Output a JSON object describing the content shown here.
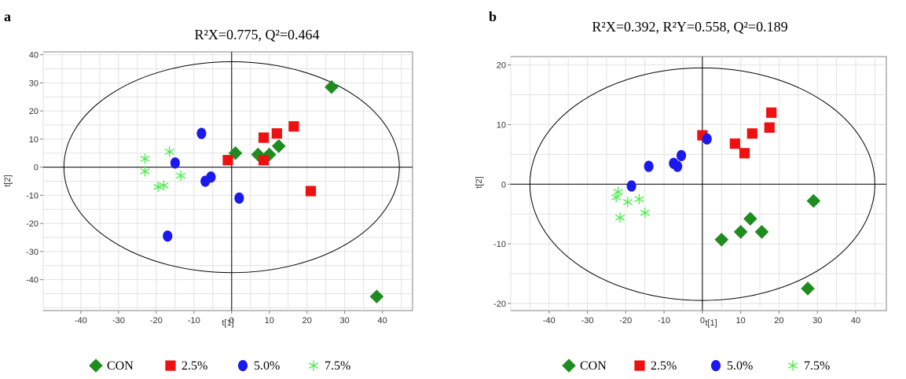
{
  "chart_data": [
    {
      "type": "scatter",
      "panel": "a",
      "title": "R²X=0.775,  Q²=0.464",
      "xlabel": "t[1]",
      "ylabel": "t[2]",
      "xlim": [
        -50,
        48
      ],
      "ylim": [
        -51,
        41
      ],
      "xticks": [
        -40,
        -30,
        -20,
        -10,
        0,
        10,
        20,
        30,
        40
      ],
      "yticks": [
        -40,
        -30,
        -20,
        -10,
        0,
        10,
        20,
        30,
        40
      ],
      "grid": true,
      "ellipse": {
        "cx": 0,
        "cy": 0,
        "rx": 44.5,
        "ry": 37.5
      },
      "series": [
        {
          "name": "CON",
          "marker": "diamond",
          "color": "#1e8c1e",
          "points": [
            [
              1,
              5
            ],
            [
              7,
              4.5
            ],
            [
              10,
              4.5
            ],
            [
              12.5,
              7.5
            ],
            [
              26.5,
              28.5
            ],
            [
              38.5,
              -46
            ]
          ]
        },
        {
          "name": "2.5%",
          "marker": "square",
          "color": "#ee1111",
          "points": [
            [
              -1,
              2.5
            ],
            [
              8.5,
              10.5
            ],
            [
              8.5,
              2.5
            ],
            [
              12,
              12
            ],
            [
              16.5,
              14.5
            ],
            [
              21,
              -8.5
            ]
          ]
        },
        {
          "name": "5.0%",
          "marker": "circle",
          "color": "#1a1aee",
          "points": [
            [
              -8,
              12
            ],
            [
              -15,
              1.5
            ],
            [
              -7,
              -5
            ],
            [
              -5.5,
              -3.5
            ],
            [
              2,
              -11
            ],
            [
              -17,
              -24.5
            ]
          ]
        },
        {
          "name": "7.5%",
          "marker": "asterisk",
          "color": "#44ee44",
          "points": [
            [
              -23,
              3
            ],
            [
              -23,
              -1.5
            ],
            [
              -16.5,
              5.5
            ],
            [
              -19.5,
              -7
            ],
            [
              -18,
              -6.5
            ],
            [
              -13.5,
              -3
            ]
          ]
        }
      ]
    },
    {
      "type": "scatter",
      "panel": "b",
      "title": "R²X=0.392,  R²Y=0.558,  Q²=0.189",
      "xlabel": "t[1]",
      "ylabel": "t[2]",
      "xlim": [
        -50,
        48
      ],
      "ylim": [
        -21.2,
        21.4
      ],
      "xticks": [
        -40,
        -30,
        -20,
        -10,
        0,
        10,
        20,
        30,
        40
      ],
      "yticks": [
        -20,
        -10,
        0,
        10,
        20
      ],
      "grid": true,
      "ellipse": {
        "cx": 0,
        "cy": 0,
        "rx": 45,
        "ry": 19.5
      },
      "series": [
        {
          "name": "CON",
          "marker": "diamond",
          "color": "#1e8c1e",
          "points": [
            [
              5,
              -9.3
            ],
            [
              10,
              -8
            ],
            [
              12.5,
              -5.8
            ],
            [
              15.5,
              -8
            ],
            [
              27.5,
              -17.5
            ],
            [
              29,
              -2.8
            ]
          ]
        },
        {
          "name": "2.5%",
          "marker": "square",
          "color": "#ee1111",
          "points": [
            [
              0,
              8.2
            ],
            [
              8.5,
              6.8
            ],
            [
              11,
              5.2
            ],
            [
              13,
              8.5
            ],
            [
              17.5,
              9.5
            ],
            [
              18,
              12
            ]
          ]
        },
        {
          "name": "5.0%",
          "marker": "circle",
          "color": "#1a1aee",
          "points": [
            [
              -18.5,
              -0.3
            ],
            [
              -14,
              3
            ],
            [
              -7.5,
              3.5
            ],
            [
              -6.5,
              3
            ],
            [
              -5.5,
              4.8
            ],
            [
              1.2,
              7.6
            ]
          ]
        },
        {
          "name": "7.5%",
          "marker": "asterisk",
          "color": "#44ee44",
          "points": [
            [
              -22,
              -1.3
            ],
            [
              -22.5,
              -2.2
            ],
            [
              -21.5,
              -5.6
            ],
            [
              -19.5,
              -3
            ],
            [
              -16.5,
              -2.5
            ],
            [
              -15,
              -4.8
            ]
          ]
        }
      ]
    }
  ]
}
